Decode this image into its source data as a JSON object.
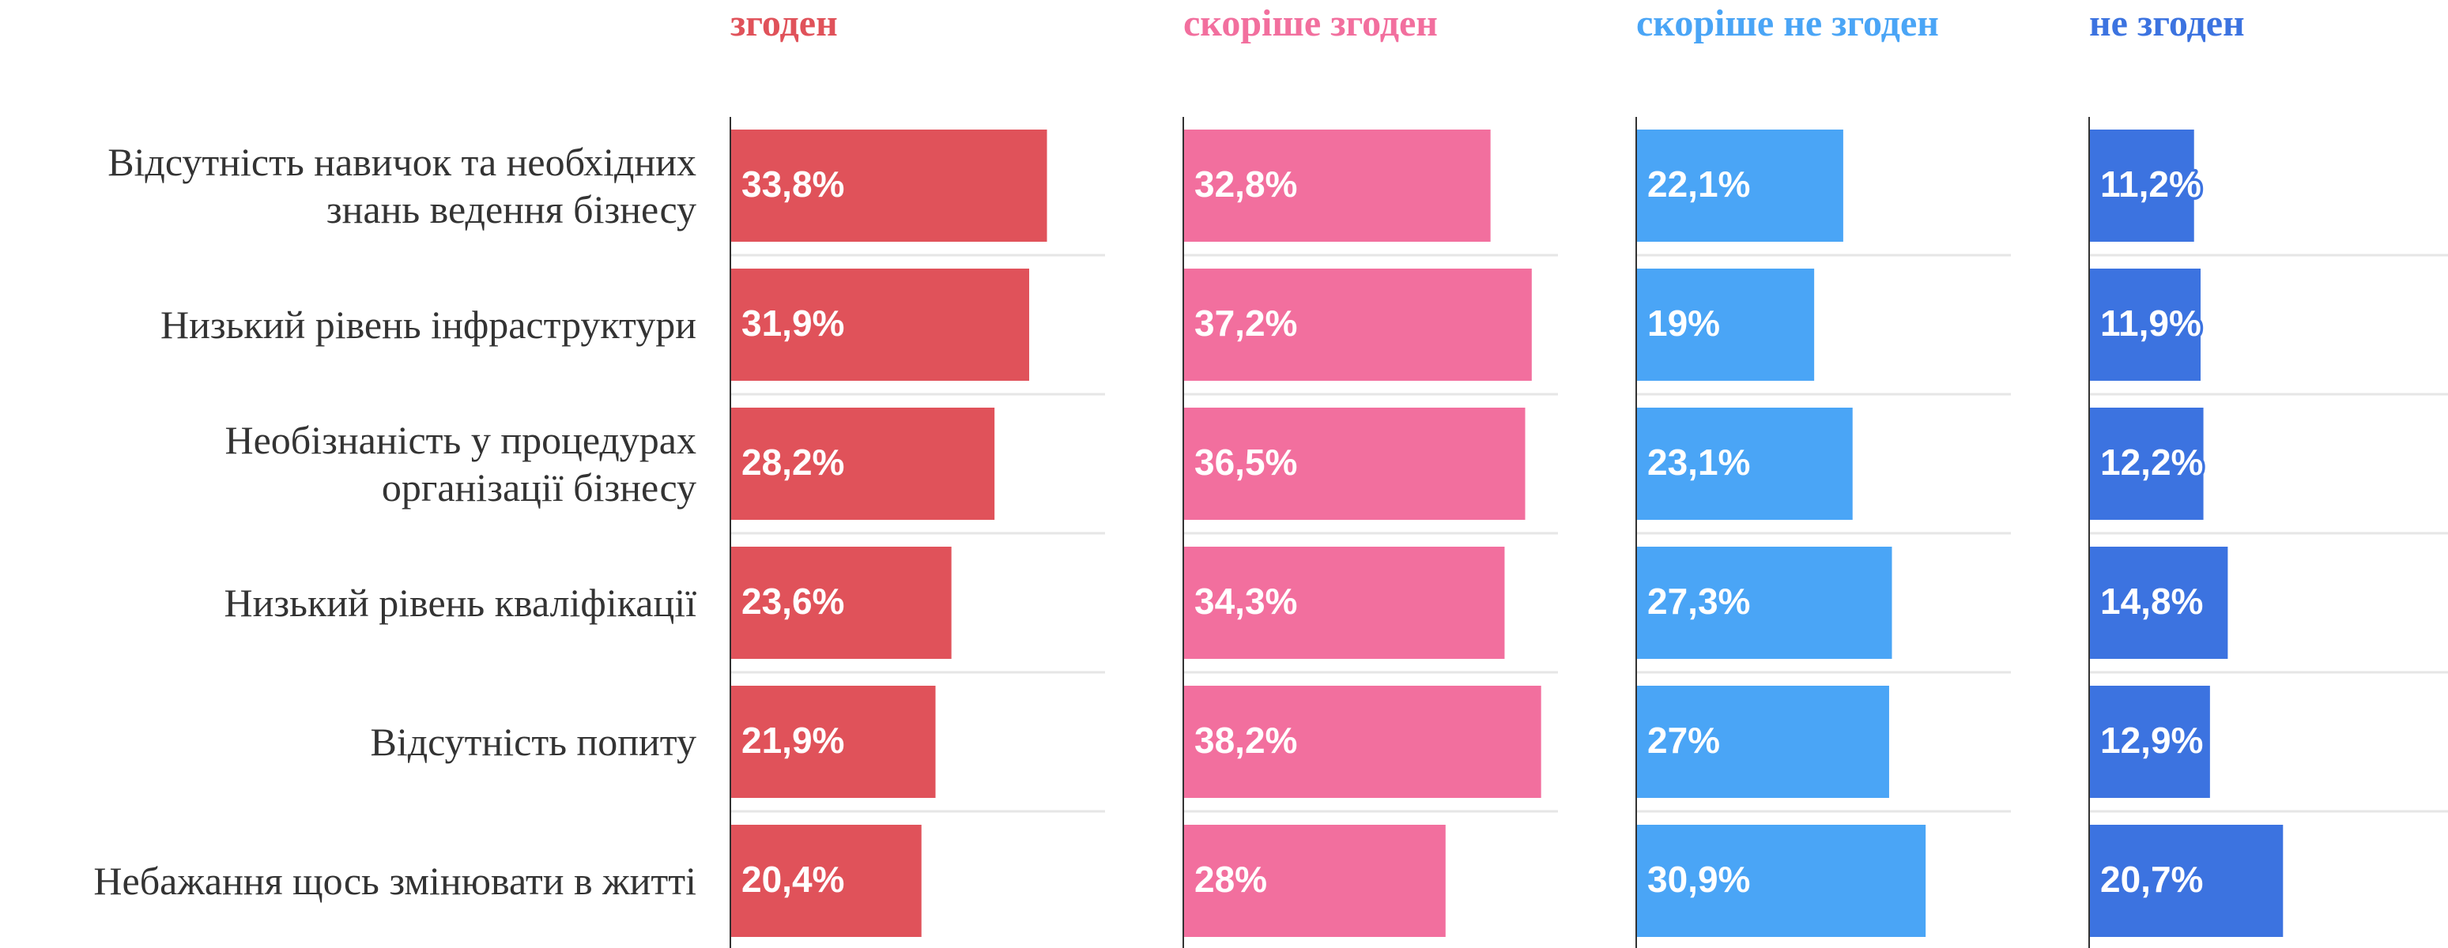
{
  "chart_data": {
    "type": "bar",
    "orientation": "horizontal",
    "categories": [
      "Відсутність навичок та необхідних\nзнань ведення бізнесу",
      "Низький рівень інфраструктури",
      "Необізнаність у процедурах\nорганізації бізнесу",
      "Низький рівень кваліфікації",
      "Відсутність попиту",
      "Небажання щось змінювати в житті"
    ],
    "xlim": [
      0,
      40
    ],
    "series": [
      {
        "name": "згоден",
        "color": "#e0525a",
        "values": [
          33.8,
          31.9,
          28.2,
          23.6,
          21.9,
          20.4
        ],
        "value_labels": [
          "33,8%",
          "31,9%",
          "28,2%",
          "23,6%",
          "21,9%",
          "20,4%"
        ]
      },
      {
        "name": "скоріше згоден",
        "color": "#f26f9e",
        "values": [
          32.8,
          37.2,
          36.5,
          34.3,
          38.2,
          28
        ],
        "value_labels": [
          "32,8%",
          "37,2%",
          "36,5%",
          "34,3%",
          "38,2%",
          "28%"
        ]
      },
      {
        "name": "скоріше не згоден",
        "color": "#4aa5f6",
        "values": [
          22.1,
          19,
          23.1,
          27.3,
          27,
          30.9
        ],
        "value_labels": [
          "22,1%",
          "19%",
          "23,1%",
          "27,3%",
          "27%",
          "30,9%"
        ]
      },
      {
        "name": "не згоден",
        "color": "#3c73e0",
        "values": [
          11.2,
          11.9,
          12.2,
          14.8,
          12.9,
          20.7
        ],
        "value_labels": [
          "11,2%",
          "11,9%",
          "12,2%",
          "14,8%",
          "12,9%",
          "20,7%"
        ]
      }
    ]
  }
}
